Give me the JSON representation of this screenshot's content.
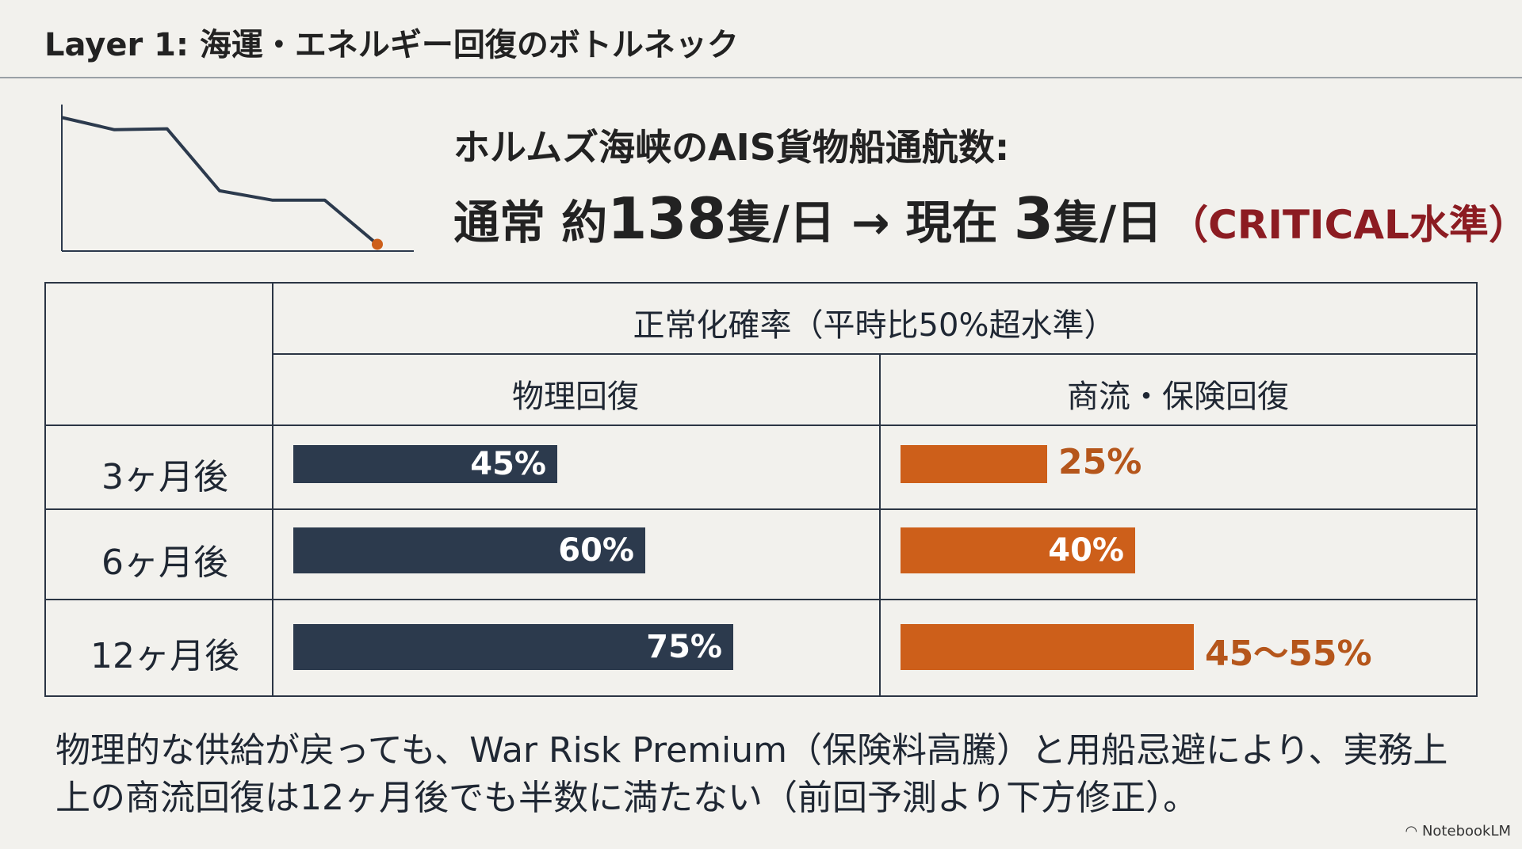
{
  "header": {
    "title": "Layer 1: 海運・エネルギー回復のボトルネック"
  },
  "headline": {
    "label": "ホルムズ海峡のAIS貨物船通航数:",
    "prefix": "通常 約",
    "normal_value": "138",
    "unit1": "隻/日 → 現在 ",
    "current_value": "3",
    "unit2": "隻/日",
    "critical": "（CRITICAL水準）"
  },
  "chart_data": [
    {
      "type": "line",
      "series": [
        {
          "values": [
            138,
            125,
            126,
            60,
            50,
            50,
            3
          ]
        }
      ],
      "title": "",
      "xlabel": "",
      "ylabel": ""
    },
    {
      "type": "bar",
      "title": "正常化確率（平時比50%超水準）",
      "categories": [
        "3ヶ月後",
        "6ヶ月後",
        "12ヶ月後"
      ],
      "series": [
        {
          "name": "物理回復",
          "values": [
            45,
            60,
            75
          ],
          "labels": [
            "45%",
            "60%",
            "75%"
          ],
          "color": "#2c3a4d"
        },
        {
          "name": "商流・保険回復",
          "values": [
            25,
            40,
            50
          ],
          "labels": [
            "25%",
            "40%",
            "45〜55%"
          ],
          "color": "#cd5f1a"
        }
      ],
      "ylim": [
        0,
        100
      ]
    }
  ],
  "footnote": "物理的な供給が戻っても、War Risk Premium（保険料高騰）と用船忌避により、実務上上の商流回復は12ヶ月後でも半数に満たない（前回予測より下方修正）。",
  "brand": "NotebookLM",
  "colors": {
    "navy": "#2c3a4d",
    "orange": "#cd5f1a",
    "critical": "#8c1c22"
  }
}
